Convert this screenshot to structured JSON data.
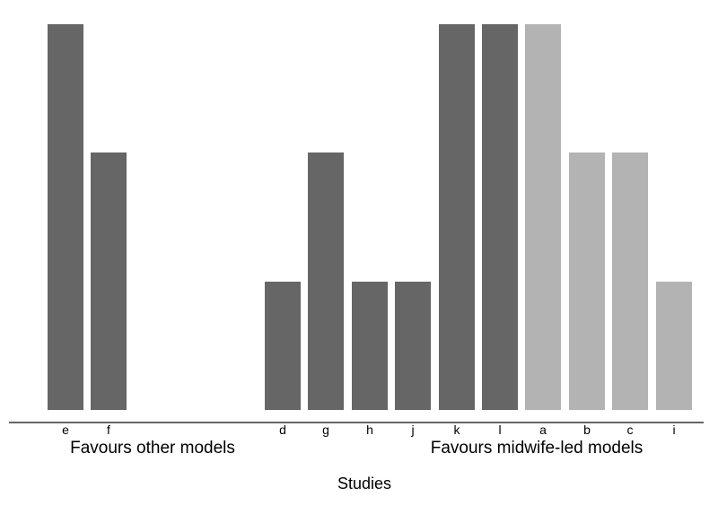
{
  "chart_data": {
    "type": "bar",
    "title": "",
    "xlabel": "Studies",
    "ylabel": "",
    "ylim": [
      0,
      3
    ],
    "y_axis_shown": false,
    "grid": false,
    "legend_position": "none",
    "categories": [
      "e",
      "f",
      "d",
      "g",
      "h",
      "j",
      "k",
      "l",
      "a",
      "b",
      "c",
      "i"
    ],
    "values": [
      3,
      2,
      1,
      2,
      1,
      1,
      3,
      3,
      3,
      2,
      2,
      1
    ],
    "bars": [
      {
        "label": "e",
        "value": 3,
        "slot": 0,
        "color": "dark"
      },
      {
        "label": "f",
        "value": 2,
        "slot": 1,
        "color": "dark"
      },
      {
        "label": "d",
        "value": 1,
        "slot": 5,
        "color": "dark"
      },
      {
        "label": "g",
        "value": 2,
        "slot": 6,
        "color": "dark"
      },
      {
        "label": "h",
        "value": 1,
        "slot": 7,
        "color": "dark"
      },
      {
        "label": "j",
        "value": 1,
        "slot": 8,
        "color": "dark"
      },
      {
        "label": "k",
        "value": 3,
        "slot": 9,
        "color": "dark"
      },
      {
        "label": "l",
        "value": 3,
        "slot": 10,
        "color": "dark"
      },
      {
        "label": "a",
        "value": 3,
        "slot": 11,
        "color": "light"
      },
      {
        "label": "b",
        "value": 2,
        "slot": 12,
        "color": "light"
      },
      {
        "label": "c",
        "value": 2,
        "slot": 13,
        "color": "light"
      },
      {
        "label": "i",
        "value": 1,
        "slot": 14,
        "color": "light"
      }
    ],
    "colors": {
      "dark": "#666666",
      "light": "#b3b3b3",
      "axis_line": "#666666",
      "text": "#000000"
    },
    "annotations": [
      {
        "text": "Favours other models",
        "side": "left"
      },
      {
        "text": "Favours midwife-led models",
        "side": "right"
      }
    ]
  }
}
